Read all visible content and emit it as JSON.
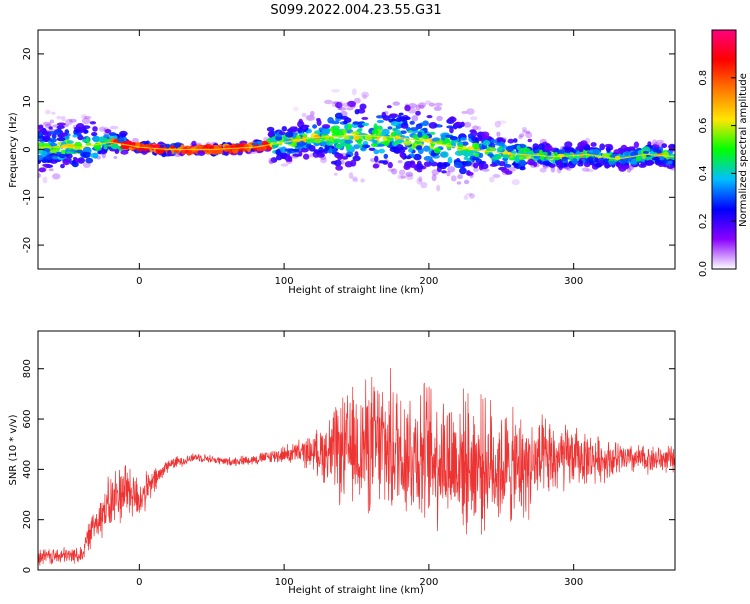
{
  "title": "S099.2022.004.23.55.G31",
  "chart_data": [
    {
      "type": "heatmap",
      "xlabel": "Height of straight line (km)",
      "ylabel": "Frequency (Hz)",
      "xlim": [
        -70,
        370
      ],
      "ylim": [
        -25,
        25
      ],
      "xticks": [
        0,
        100,
        200,
        300
      ],
      "yticks": [
        -20,
        -10,
        0,
        10,
        20
      ],
      "colorbar": {
        "label": "Normalized spectral amplitude",
        "ticks": [
          0.0,
          0.2,
          0.4,
          0.6,
          0.8
        ],
        "range": [
          0,
          1
        ],
        "colormap": "gist_rainbow",
        "stops": [
          "#ffffff",
          "#8a00ff",
          "#0000ff",
          "#00bfff",
          "#00ff00",
          "#ffe600",
          "#ff7a00",
          "#ff0000",
          "#ff0080"
        ]
      },
      "ridge": {
        "x": [
          -70,
          -40,
          -20,
          0,
          20,
          50,
          80,
          100,
          120,
          150,
          180,
          200,
          230,
          260,
          290,
          310,
          330,
          350,
          370
        ],
        "y": [
          0.5,
          0.5,
          1.5,
          0.5,
          0,
          0,
          0.5,
          1.5,
          2.5,
          3,
          2.5,
          1.5,
          0,
          -1,
          -1.5,
          -1,
          -2,
          -1,
          -1.5
        ]
      }
    },
    {
      "type": "line",
      "xlabel": "Height of straight line (km)",
      "ylabel": "SNR (10 * v/v)",
      "xlim": [
        -70,
        370
      ],
      "ylim": [
        0,
        950
      ],
      "xticks": [
        0,
        100,
        200,
        300
      ],
      "yticks": [
        0,
        200,
        400,
        600,
        800
      ],
      "color": "#ee3333",
      "envelope": {
        "x": [
          -70,
          -40,
          -30,
          -20,
          -10,
          0,
          20,
          40,
          60,
          80,
          100,
          120,
          140,
          160,
          180,
          200,
          220,
          240,
          260,
          280,
          300,
          320,
          340,
          370
        ],
        "mean": [
          50,
          60,
          200,
          260,
          330,
          280,
          420,
          450,
          430,
          440,
          460,
          470,
          470,
          500,
          480,
          460,
          430,
          420,
          400,
          430,
          450,
          440,
          440,
          440
        ],
        "spread": [
          40,
          40,
          90,
          140,
          150,
          100,
          30,
          20,
          20,
          25,
          40,
          80,
          250,
          320,
          330,
          330,
          320,
          300,
          260,
          200,
          140,
          100,
          70,
          60
        ]
      }
    }
  ]
}
